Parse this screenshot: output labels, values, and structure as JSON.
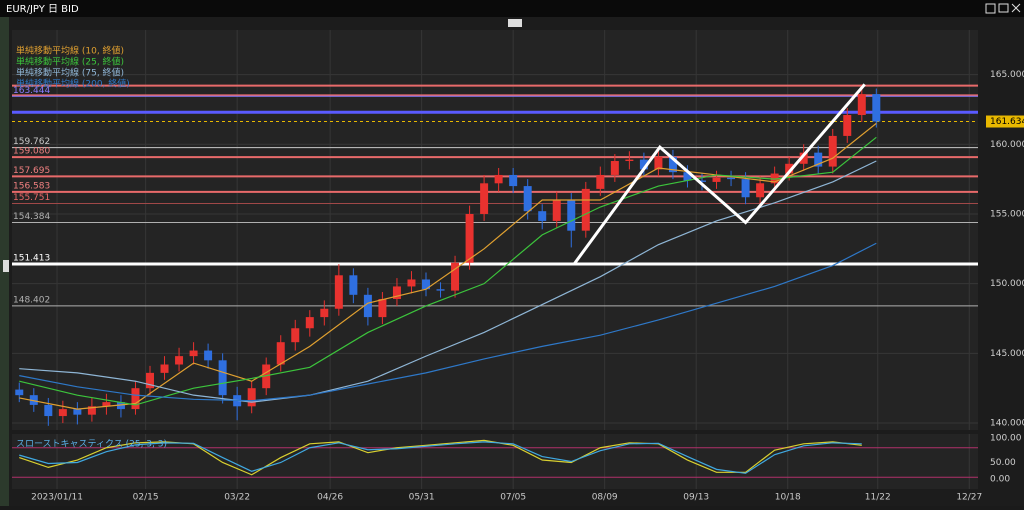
{
  "window_title": "EUR/JPY 日 BID",
  "chart_data": [
    {
      "type": "candlestick",
      "up_color": "#e8322f",
      "down_color": "#2f6fe0",
      "grid": true,
      "xlim": [
        -0.5,
        66
      ],
      "xticks": [
        {
          "value": 2.6,
          "label": "2023/01/11"
        },
        {
          "value": 8.7,
          "label": "02/15"
        },
        {
          "value": 15.0,
          "label": "03/22"
        },
        {
          "value": 21.4,
          "label": "04/26"
        },
        {
          "value": 27.7,
          "label": "05/31"
        },
        {
          "value": 34.0,
          "label": "07/05"
        },
        {
          "value": 40.3,
          "label": "08/09"
        },
        {
          "value": 46.6,
          "label": "09/13"
        },
        {
          "value": 52.9,
          "label": "10/18"
        },
        {
          "value": 59.1,
          "label": "11/22"
        },
        {
          "value": 65.4,
          "label": "12/27"
        }
      ],
      "ylim": [
        139.5,
        168.2
      ],
      "yticks": [
        {
          "value": 140,
          "label": "140.000"
        },
        {
          "value": 145,
          "label": "145.000"
        },
        {
          "value": 150,
          "label": "150.000"
        },
        {
          "value": 155,
          "label": "155.000"
        },
        {
          "value": 160,
          "label": "160.000"
        },
        {
          "value": 165,
          "label": "165.000"
        }
      ],
      "ohlc": [
        [
          142.4,
          142.9,
          141.5,
          142
        ],
        [
          142,
          142.5,
          140.8,
          141.3
        ],
        [
          141.3,
          141.8,
          139.8,
          140.5
        ],
        [
          140.5,
          141.6,
          140,
          141
        ],
        [
          141,
          141.5,
          139.9,
          140.6
        ],
        [
          140.6,
          141.8,
          140.1,
          141.2
        ],
        [
          141.2,
          142.1,
          140.6,
          141.5
        ],
        [
          141.5,
          142,
          140.4,
          141
        ],
        [
          141,
          143,
          140.6,
          142.5
        ],
        [
          142.5,
          144.1,
          142,
          143.6
        ],
        [
          143.6,
          144.8,
          143.1,
          144.2
        ],
        [
          144.2,
          145.4,
          143.7,
          144.8
        ],
        [
          144.8,
          145.8,
          144.2,
          145.2
        ],
        [
          145.2,
          145.7,
          143.9,
          144.5
        ],
        [
          144.5,
          145,
          141.4,
          142
        ],
        [
          142,
          142.6,
          140.2,
          141.2
        ],
        [
          141.2,
          143,
          140.7,
          142.5
        ],
        [
          142.5,
          144.7,
          142,
          144.2
        ],
        [
          144.2,
          146.3,
          143.7,
          145.8
        ],
        [
          145.8,
          147.4,
          145.2,
          146.8
        ],
        [
          146.8,
          148.1,
          146.2,
          147.6
        ],
        [
          147.6,
          148.8,
          147,
          148.2
        ],
        [
          148.2,
          151.4,
          147.7,
          150.6
        ],
        [
          150.6,
          151.1,
          148.6,
          149.2
        ],
        [
          149.2,
          149.7,
          147,
          147.6
        ],
        [
          147.6,
          149.4,
          147.1,
          148.9
        ],
        [
          148.9,
          150.4,
          148.4,
          149.8
        ],
        [
          149.8,
          150.9,
          149.3,
          150.3
        ],
        [
          150.3,
          150.8,
          149.1,
          149.6
        ],
        [
          149.6,
          150.1,
          149,
          149.5
        ],
        [
          149.5,
          152,
          149,
          151.5
        ],
        [
          151.5,
          155.6,
          151,
          155
        ],
        [
          155,
          157.8,
          154.5,
          157.2
        ],
        [
          157.2,
          158.3,
          156.6,
          157.8
        ],
        [
          157.8,
          158.3,
          156.5,
          157
        ],
        [
          157,
          157.5,
          154.6,
          155.2
        ],
        [
          155.2,
          155.7,
          153.9,
          154.5
        ],
        [
          154.5,
          156.6,
          154,
          156
        ],
        [
          156,
          156.5,
          152.6,
          153.8
        ],
        [
          153.8,
          157.3,
          153.3,
          156.8
        ],
        [
          156.8,
          158.4,
          156.3,
          157.8
        ],
        [
          157.8,
          159.3,
          157.3,
          158.8
        ],
        [
          158.8,
          159.5,
          158.2,
          158.9
        ],
        [
          158.9,
          159.4,
          157.7,
          158.2
        ],
        [
          158.2,
          159.8,
          157.7,
          159.1
        ],
        [
          159.1,
          159.6,
          157.5,
          158
        ],
        [
          158,
          158.5,
          156.9,
          157.4
        ],
        [
          157.4,
          157.9,
          156.7,
          157.3
        ],
        [
          157.3,
          158.1,
          156.8,
          157.6
        ],
        [
          157.6,
          158.1,
          157,
          157.5
        ],
        [
          157.5,
          158,
          155.7,
          156.2
        ],
        [
          156.2,
          157.7,
          155.7,
          157.2
        ],
        [
          157.2,
          158.4,
          156.7,
          157.9
        ],
        [
          157.9,
          159.1,
          157.4,
          158.6
        ],
        [
          158.6,
          160,
          158.1,
          159.4
        ],
        [
          159.4,
          159.9,
          157.9,
          158.4
        ],
        [
          158.4,
          161.1,
          157.9,
          160.6
        ],
        [
          160.6,
          162.6,
          160.1,
          162.1
        ],
        [
          162.1,
          164.3,
          161.6,
          163.6
        ],
        [
          163.6,
          164,
          161.2,
          161.634
        ]
      ],
      "series": [
        {
          "name": "単純移動平均線 (10, 終値)",
          "color": "#e0a030",
          "x": [
            0,
            4,
            8,
            12,
            16,
            20,
            24,
            28,
            32,
            36,
            40,
            44,
            48,
            52,
            56,
            59
          ],
          "values": [
            141.8,
            141,
            141.4,
            144.3,
            143,
            145.5,
            148.6,
            149.6,
            152.5,
            156,
            156,
            158.3,
            157.8,
            157.3,
            159,
            161.5
          ]
        },
        {
          "name": "単純移動平均線 (25, 終値)",
          "color": "#3cc43c",
          "x": [
            0,
            4,
            8,
            12,
            16,
            20,
            24,
            28,
            32,
            36,
            40,
            44,
            48,
            52,
            56,
            59
          ],
          "values": [
            143,
            142,
            141.3,
            142.5,
            143.2,
            144,
            146.5,
            148.4,
            150,
            153.5,
            155.5,
            157,
            157.8,
            157.5,
            158,
            160.5
          ]
        },
        {
          "name": "単純移動平均線 (75, 終値)",
          "color": "#8fb6d6",
          "x": [
            0,
            4,
            8,
            12,
            16,
            20,
            24,
            28,
            32,
            36,
            40,
            44,
            48,
            52,
            56,
            59
          ],
          "values": [
            143.9,
            143.6,
            143,
            142,
            141.5,
            142,
            143,
            144.8,
            146.5,
            148.5,
            150.5,
            152.8,
            154.5,
            155.8,
            157.3,
            158.8
          ]
        },
        {
          "name": "単純移動平均線 (200, 終値)",
          "color": "#2e78c8",
          "x": [
            0,
            4,
            8,
            12,
            16,
            20,
            24,
            28,
            32,
            36,
            40,
            44,
            48,
            52,
            56,
            59
          ],
          "values": [
            143.4,
            142.6,
            142,
            141.7,
            141.6,
            142,
            142.8,
            143.6,
            144.6,
            145.5,
            146.3,
            147.4,
            148.6,
            149.8,
            151.3,
            152.9
          ]
        }
      ],
      "levels": [
        {
          "value": 164.206,
          "color": "#e86a6a",
          "width": 2
        },
        {
          "value": 163.512,
          "color": "#e86a6a",
          "width": 2
        },
        {
          "value": 163.444,
          "label": "163.444",
          "color": "#8a7cff",
          "width": 1
        },
        {
          "value": 162.3,
          "color": "#5a5aff",
          "width": 3
        },
        {
          "value": 159.762,
          "label": "159.762",
          "color": "#c8c8c8",
          "width": 1
        },
        {
          "value": 159.08,
          "label": "159.080",
          "color": "#e86a6a",
          "width": 2
        },
        {
          "value": 157.695,
          "label": "157.695",
          "color": "#e86a6a",
          "width": 2
        },
        {
          "value": 156.583,
          "label": "156.583",
          "color": "#e86a6a",
          "width": 2
        },
        {
          "value": 155.751,
          "label": "155.751",
          "color": "#a04848",
          "width": 1
        },
        {
          "value": 154.384,
          "label": "154.384",
          "color": "#b0b0b0",
          "width": 1
        },
        {
          "value": 151.413,
          "label": "151.413",
          "color": "#ffffff",
          "width": 3
        },
        {
          "value": 148.402,
          "label": "148.402",
          "color": "#b0b0b0",
          "width": 1
        }
      ],
      "last_price": {
        "value": 161.634,
        "label": "161.634",
        "color": "#e8b800"
      },
      "pattern": {
        "color": "#ffffff",
        "x": [
          38.2,
          44.1,
          50,
          58.2
        ],
        "values": [
          151.413,
          159.8,
          154.384,
          164.3
        ]
      }
    },
    {
      "type": "stochastic",
      "title": "スローストキャスティクス (25, 3, 3)",
      "ylim": [
        -4,
        108
      ],
      "yticks": [
        {
          "value": 0,
          "label": "0.00"
        },
        {
          "value": 50,
          "label": "50.00"
        },
        {
          "value": 100,
          "label": "100.00"
        }
      ],
      "bands": [
        20,
        80
      ],
      "series": [
        {
          "color": "#d8d030",
          "x": [
            0,
            2,
            4,
            6,
            8,
            10,
            12,
            14,
            16,
            18,
            20,
            22,
            24,
            26,
            28,
            30,
            32,
            34,
            36,
            38,
            40,
            42,
            44,
            46,
            48,
            50,
            52,
            54,
            56,
            58
          ],
          "values": [
            60,
            40,
            55,
            80,
            90,
            92,
            88,
            50,
            25,
            60,
            88,
            92,
            70,
            80,
            85,
            90,
            95,
            85,
            55,
            50,
            80,
            90,
            88,
            55,
            30,
            30,
            75,
            88,
            92,
            85
          ]
        },
        {
          "color": "#40a8e0",
          "x": [
            0,
            2,
            4,
            6,
            8,
            10,
            12,
            14,
            16,
            18,
            20,
            22,
            24,
            26,
            28,
            30,
            32,
            34,
            36,
            38,
            40,
            42,
            44,
            46,
            48,
            50,
            52,
            54,
            56,
            58
          ],
          "values": [
            65,
            48,
            50,
            72,
            86,
            90,
            89,
            60,
            32,
            50,
            80,
            90,
            76,
            78,
            83,
            88,
            92,
            88,
            62,
            52,
            74,
            88,
            89,
            62,
            36,
            28,
            66,
            84,
            90,
            88
          ]
        }
      ]
    }
  ]
}
